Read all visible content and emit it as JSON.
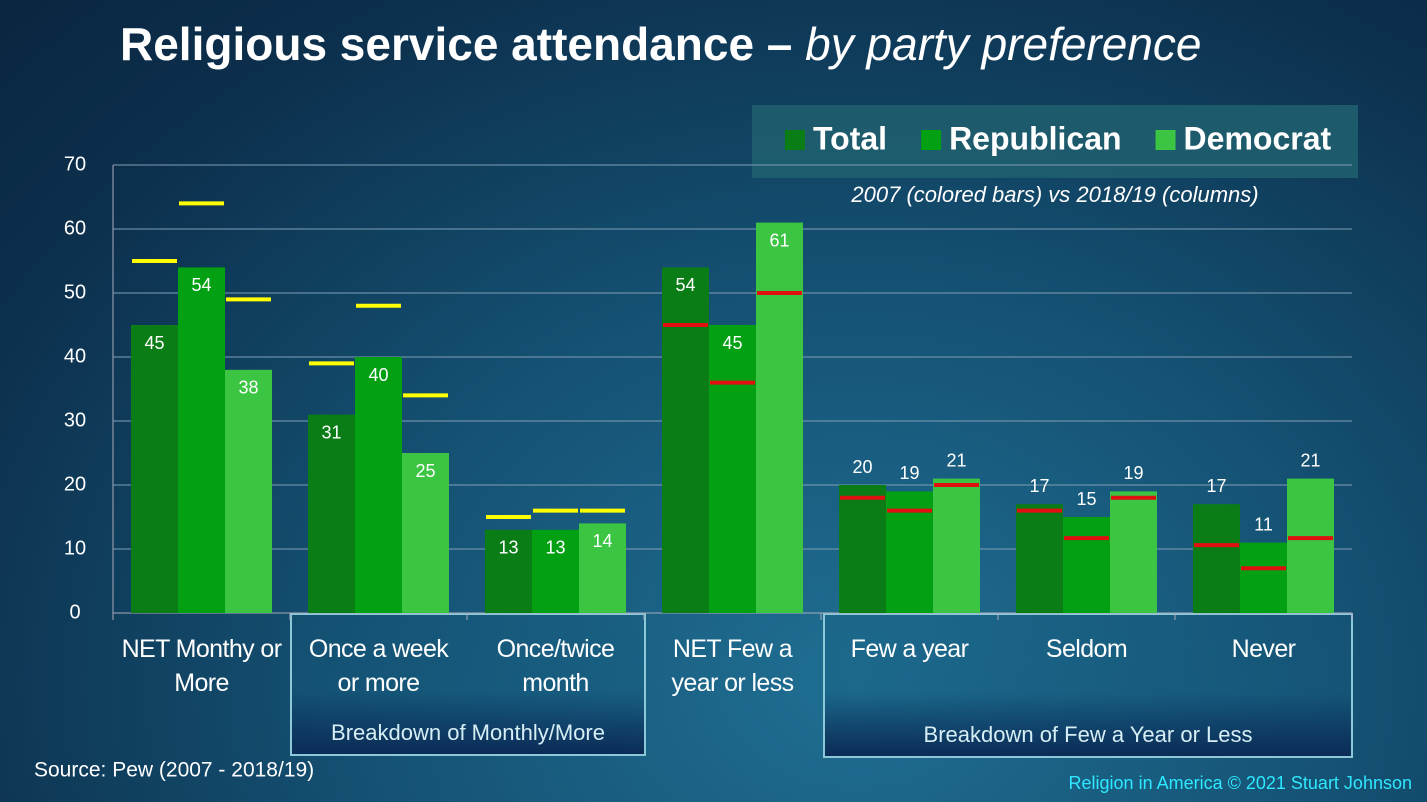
{
  "chart_data": {
    "type": "bar",
    "title": "Religious service attendance –",
    "title_italic": "by party preference",
    "subtitle": "2007 (colored bars) vs 2018/19 (columns)",
    "source": "Source: Pew (2007 - 2018/19)",
    "footer": "Religion in America © 2021 Stuart Johnson",
    "brackets": [
      "Breakdown of Monthly/More",
      "Breakdown of Few a Year or Less"
    ],
    "categories": [
      "NET Monthy or More",
      "Once a week or more",
      "Once/twice month",
      "NET Few a year or less",
      "Few a year",
      "Seldom",
      "Never"
    ],
    "series": [
      {
        "name": "Total",
        "color": "#0b7d16",
        "values": [
          45,
          31,
          13,
          54,
          20,
          17,
          17
        ],
        "markers": [
          55,
          39,
          15,
          45,
          18,
          16,
          10.6
        ]
      },
      {
        "name": "Republican",
        "color": "#02a012",
        "values": [
          54,
          40,
          13,
          45,
          19,
          15,
          11
        ],
        "markers": [
          64,
          48,
          16,
          36,
          16,
          11.7,
          7
        ]
      },
      {
        "name": "Democrat",
        "color": "#3cc443",
        "values": [
          38,
          25,
          14,
          61,
          21,
          19,
          21
        ],
        "markers": [
          49,
          34,
          16,
          50,
          20,
          18,
          11.7
        ]
      }
    ],
    "marker_colors": [
      "#ffff00",
      "#ffff00",
      "#ffff00",
      "#e01010",
      "#e01010",
      "#e01010",
      "#e01010"
    ],
    "value_label_positions": [
      "inside",
      "inside",
      "inside",
      "inside",
      "above",
      "above",
      "above"
    ],
    "ylim": [
      0,
      70
    ],
    "yticks": [
      0,
      10,
      20,
      30,
      40,
      50,
      60,
      70
    ],
    "grid": true,
    "legend": "top-right"
  }
}
